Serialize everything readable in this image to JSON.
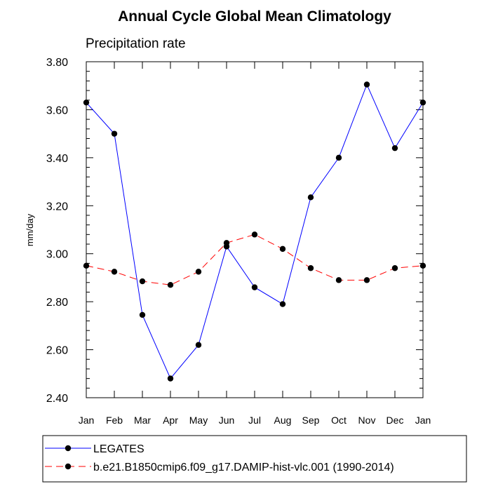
{
  "chart_data": {
    "type": "line",
    "title": "Annual Cycle Global Mean Climatology",
    "subtitle": "Precipitation rate",
    "ylabel": "mm/day",
    "xlabel": "",
    "categories": [
      "Jan",
      "Feb",
      "Mar",
      "Apr",
      "May",
      "Jun",
      "Jul",
      "Aug",
      "Sep",
      "Oct",
      "Nov",
      "Dec",
      "Jan"
    ],
    "ylim": [
      2.4,
      3.8
    ],
    "yticks": [
      "2.40",
      "2.60",
      "2.80",
      "3.00",
      "3.20",
      "3.40",
      "3.60",
      "3.80"
    ],
    "grid": false,
    "legend_position": "bottom",
    "series": [
      {
        "name": "LEGATES",
        "color": "#0000ff",
        "dash": "solid",
        "values": [
          3.63,
          3.5,
          2.745,
          2.48,
          2.62,
          3.03,
          2.86,
          2.79,
          3.235,
          3.4,
          3.705,
          3.44,
          3.63
        ]
      },
      {
        "name": "b.e21.B1850cmip6.f09_g17.DAMIP-hist-vlc.001 (1990-2014)",
        "color": "#ff0000",
        "dash": "dashed",
        "values": [
          2.95,
          2.925,
          2.885,
          2.87,
          2.925,
          3.045,
          3.08,
          3.02,
          2.94,
          2.89,
          2.89,
          2.94,
          2.95
        ]
      }
    ]
  }
}
